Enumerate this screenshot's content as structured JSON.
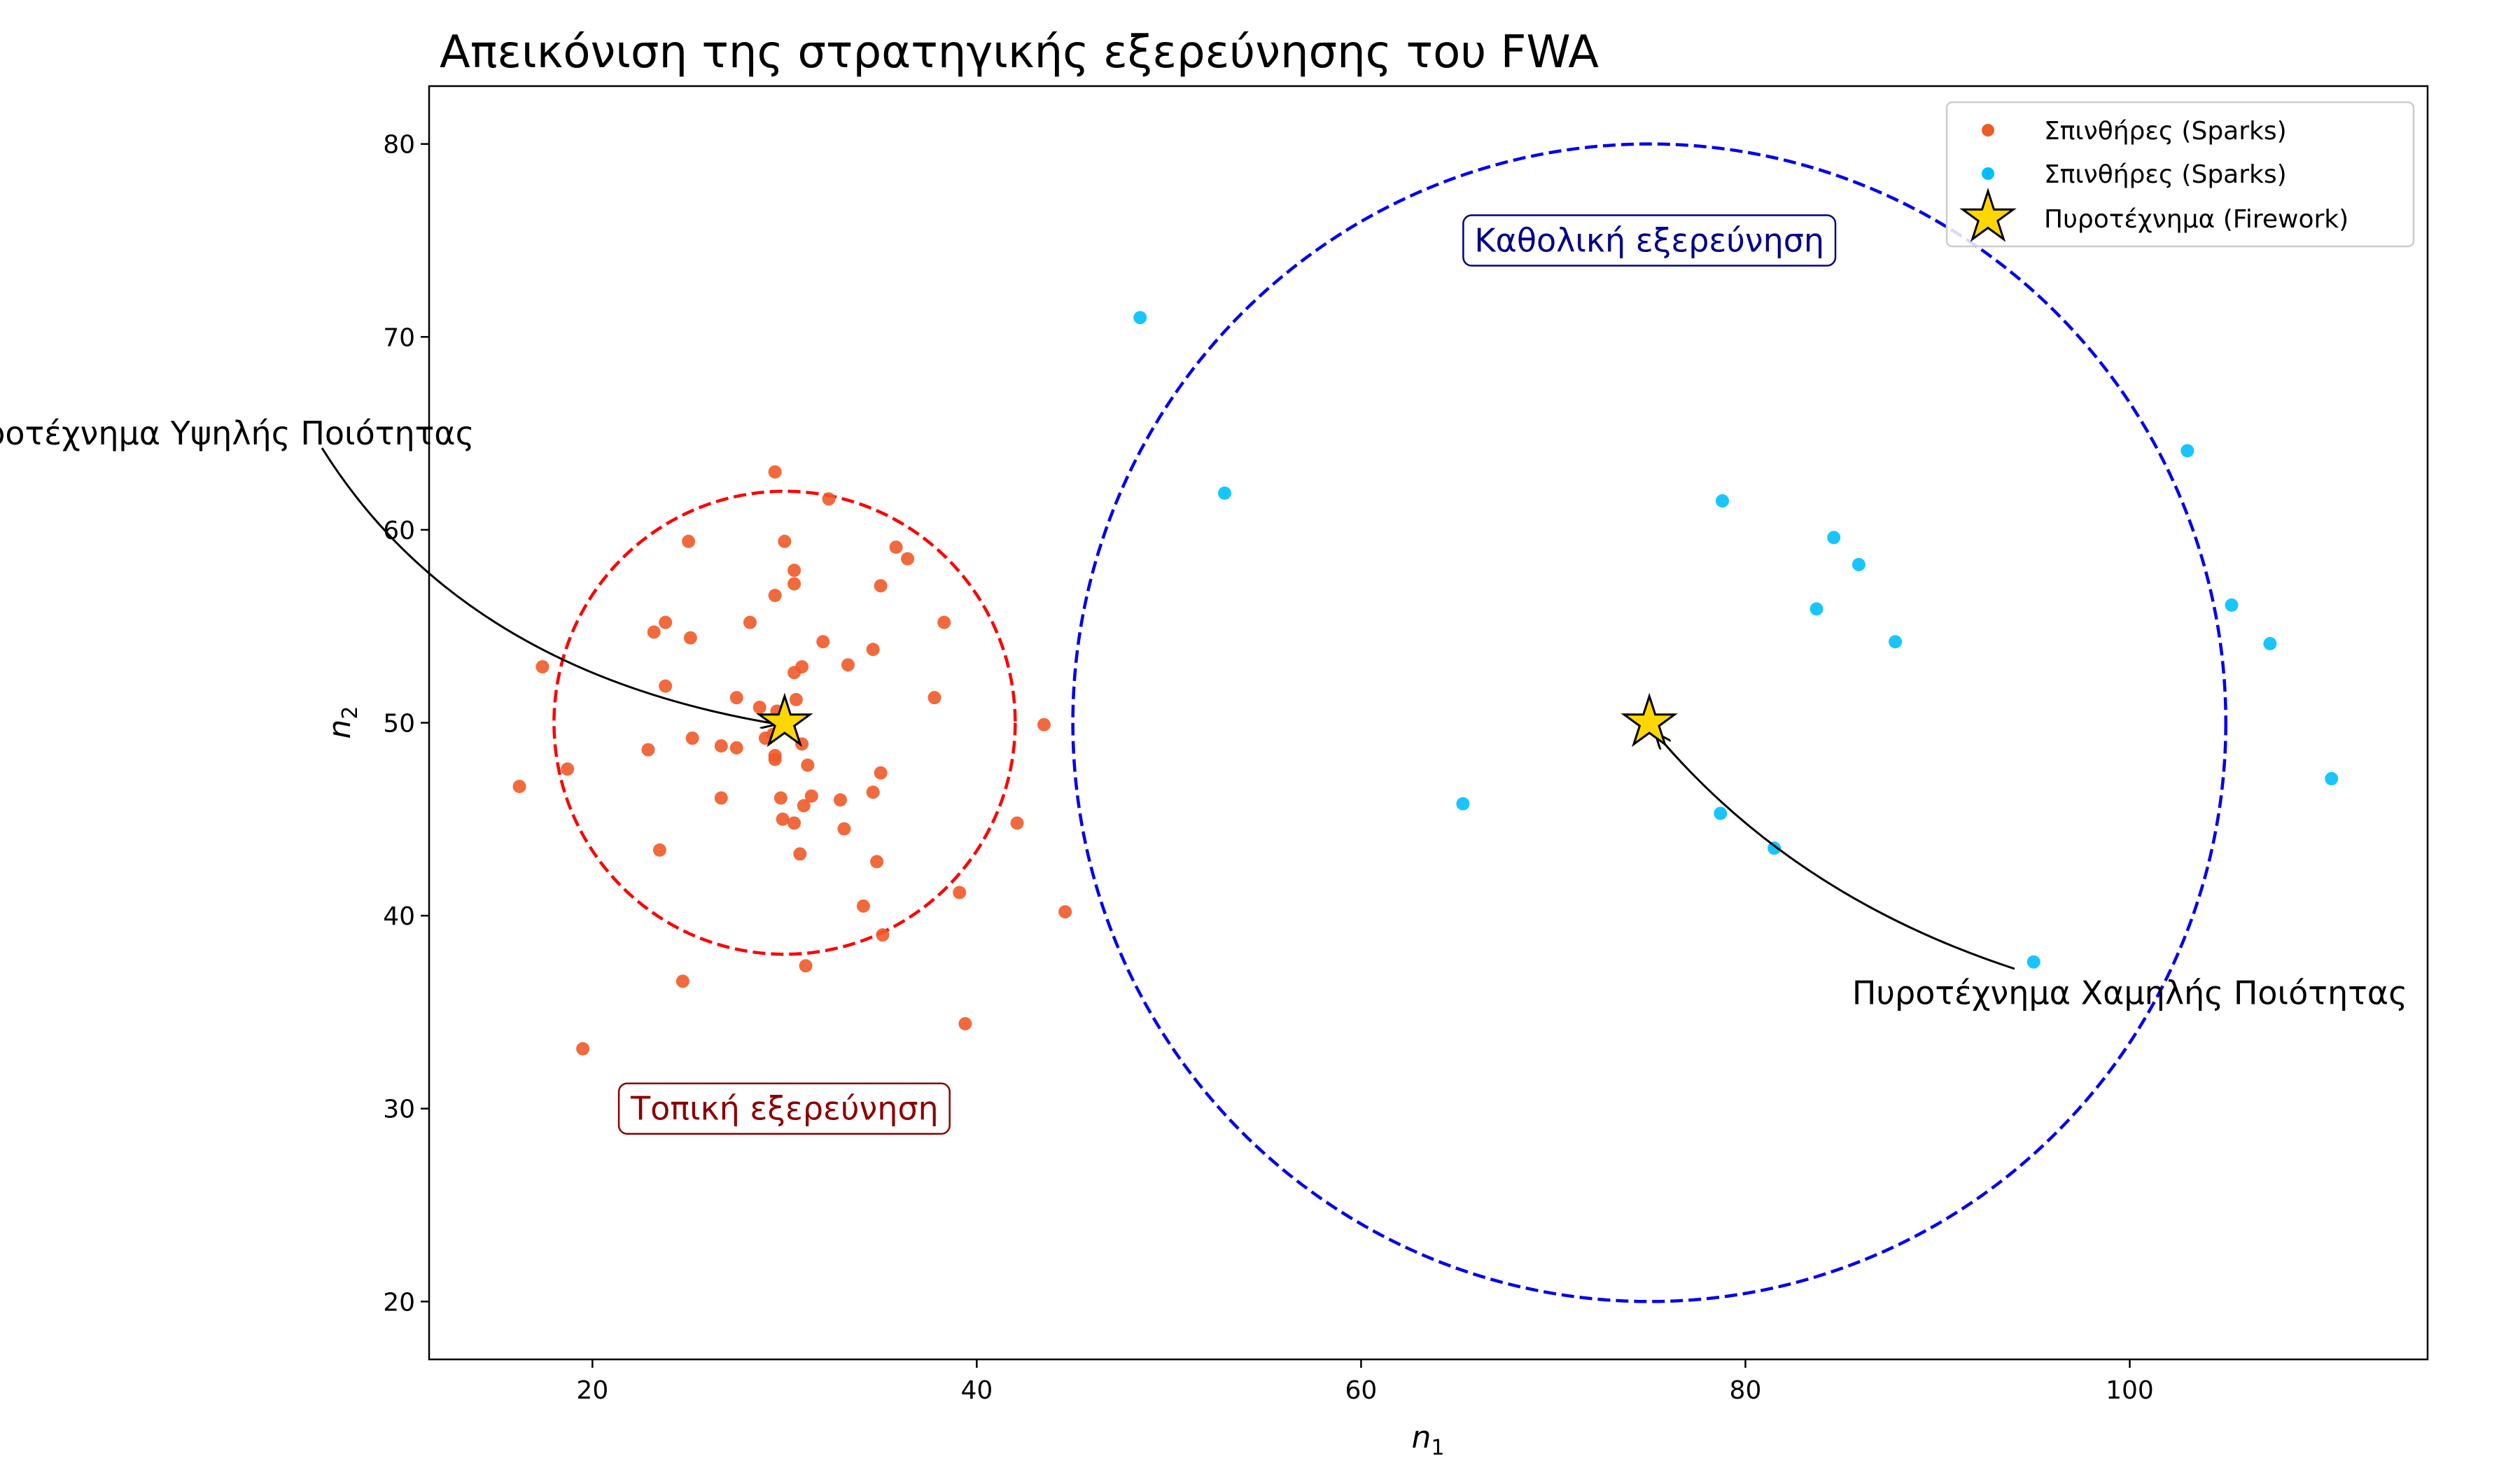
{
  "chart_data": {
    "type": "scatter",
    "title": "Απεικόνιση της στρατηγικής εξερεύνησης του FWA",
    "xlabel": "n",
    "xlabel_sub": "1",
    "ylabel": "n",
    "ylabel_sub": "2",
    "xlim": [
      11.5,
      115.5
    ],
    "ylim": [
      17,
      83
    ],
    "xticks": [
      "20",
      "40",
      "60",
      "80",
      "100"
    ],
    "yticks": [
      "20",
      "30",
      "40",
      "50",
      "60",
      "70",
      "80"
    ],
    "grid": false,
    "legend_placement": "top-right",
    "colors": {
      "local_sparks": "#f05a28",
      "global_sparks": "#00bfff",
      "firework_fill": "#ffd700",
      "local_circle": "#ff0000",
      "global_circle": "#0000ee",
      "local_label": "#8b0000",
      "global_label": "#00008b"
    },
    "series": [
      {
        "name": "Σπινθήρες (Sparks)",
        "kind": "local_sparks",
        "points": [
          [
            29.5,
            63.0
          ],
          [
            32.3,
            61.6
          ],
          [
            25.0,
            59.4
          ],
          [
            30.0,
            59.4
          ],
          [
            35.8,
            59.1
          ],
          [
            36.4,
            58.5
          ],
          [
            30.5,
            57.9
          ],
          [
            30.5,
            57.2
          ],
          [
            35.0,
            57.1
          ],
          [
            29.5,
            56.6
          ],
          [
            23.8,
            55.2
          ],
          [
            28.2,
            55.2
          ],
          [
            38.3,
            55.2
          ],
          [
            23.2,
            54.7
          ],
          [
            25.1,
            54.4
          ],
          [
            32.0,
            54.2
          ],
          [
            34.6,
            53.8
          ],
          [
            33.3,
            53.0
          ],
          [
            30.9,
            52.9
          ],
          [
            30.5,
            52.6
          ],
          [
            17.4,
            52.9
          ],
          [
            23.8,
            51.9
          ],
          [
            27.5,
            51.3
          ],
          [
            30.6,
            51.2
          ],
          [
            37.8,
            51.3
          ],
          [
            28.7,
            50.8
          ],
          [
            29.6,
            50.6
          ],
          [
            43.5,
            49.9
          ],
          [
            29.4,
            49.4
          ],
          [
            29.0,
            49.2
          ],
          [
            25.2,
            49.2
          ],
          [
            30.9,
            48.9
          ],
          [
            26.7,
            48.8
          ],
          [
            27.5,
            48.7
          ],
          [
            22.9,
            48.6
          ],
          [
            29.5,
            48.3
          ],
          [
            29.5,
            48.1
          ],
          [
            31.2,
            47.8
          ],
          [
            18.7,
            47.6
          ],
          [
            35.0,
            47.4
          ],
          [
            16.2,
            46.7
          ],
          [
            34.6,
            46.4
          ],
          [
            31.4,
            46.2
          ],
          [
            29.8,
            46.1
          ],
          [
            26.7,
            46.1
          ],
          [
            32.9,
            46.0
          ],
          [
            31.0,
            45.7
          ],
          [
            29.9,
            45.0
          ],
          [
            30.5,
            44.8
          ],
          [
            42.1,
            44.8
          ],
          [
            33.1,
            44.5
          ],
          [
            23.5,
            43.4
          ],
          [
            30.8,
            43.2
          ],
          [
            34.8,
            42.8
          ],
          [
            39.1,
            41.2
          ],
          [
            34.1,
            40.5
          ],
          [
            44.6,
            40.2
          ],
          [
            35.1,
            39.0
          ],
          [
            31.1,
            37.4
          ],
          [
            24.7,
            36.6
          ],
          [
            39.4,
            34.4
          ],
          [
            19.5,
            33.1
          ]
        ]
      },
      {
        "name": "Σπινθήρες (Sparks)",
        "kind": "global_sparks",
        "points": [
          [
            48.5,
            71.0
          ],
          [
            52.9,
            61.9
          ],
          [
            103.0,
            64.1
          ],
          [
            78.8,
            61.5
          ],
          [
            84.6,
            59.6
          ],
          [
            85.9,
            58.2
          ],
          [
            105.3,
            56.1
          ],
          [
            83.7,
            55.9
          ],
          [
            107.3,
            54.1
          ],
          [
            87.8,
            54.2
          ],
          [
            110.5,
            47.1
          ],
          [
            65.3,
            45.8
          ],
          [
            78.7,
            45.3
          ],
          [
            81.5,
            43.5
          ],
          [
            95.0,
            37.6
          ]
        ]
      },
      {
        "name": "Πυροτέχνημα (Firework)",
        "kind": "firework",
        "points": [
          [
            30.0,
            50.0
          ],
          [
            75.0,
            50.0
          ]
        ]
      }
    ],
    "circles": [
      {
        "kind": "local_circle",
        "cx": 30.0,
        "cy": 50.0,
        "r": 12.0
      },
      {
        "kind": "global_circle",
        "cx": 75.0,
        "cy": 50.0,
        "r": 30.0
      }
    ],
    "regions": {
      "local": {
        "text": "Τοπική εξερεύνηση",
        "x": 30.0,
        "y": 30.0
      },
      "global": {
        "text": "Καθολική εξερεύνηση",
        "x": 75.0,
        "y": 75.0
      }
    },
    "annotations": {
      "high": {
        "text": "Πυροτέχνημα Υψηλής Ποιότητας",
        "text_x": 0.0,
        "text_y": 65.0,
        "target_x": 30.0,
        "target_y": 50.0
      },
      "low": {
        "text": "Πυροτέχνημα Χαμηλής Ποιότητας",
        "text_x": 100.0,
        "text_y": 36.0,
        "target_x": 75.0,
        "target_y": 50.0
      }
    }
  }
}
